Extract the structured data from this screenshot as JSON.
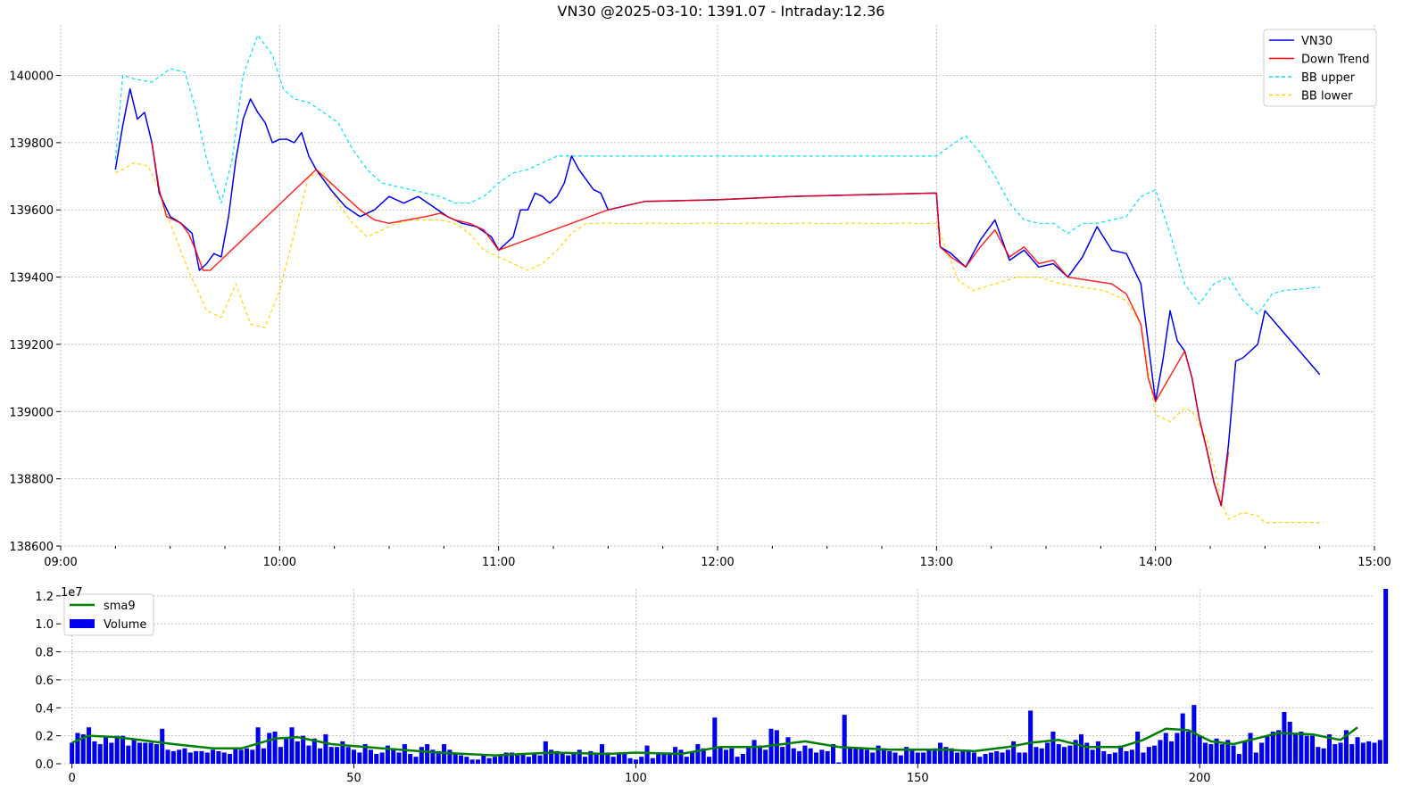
{
  "chart_data": [
    {
      "type": "line",
      "title": "VN30 @2025-03-10: 1391.07 - Intraday:12.36",
      "ylim": [
        138600,
        140150
      ],
      "xlim": [
        "09:00",
        "15:00"
      ],
      "y_ticks": [
        138600,
        138800,
        139000,
        139200,
        139400,
        139600,
        139800,
        140000
      ],
      "x_ticks": [
        "09:00",
        "10:00",
        "11:00",
        "12:00",
        "13:00",
        "14:00",
        "15:00"
      ],
      "grid": true,
      "legend_position": "top-right",
      "legend": [
        {
          "label": "VN30",
          "color": "#0000ee",
          "style": "solid"
        },
        {
          "label": "Down Trend",
          "color": "#ff0000",
          "style": "solid"
        },
        {
          "label": "BB upper",
          "color": "#00e5ee",
          "style": "dashed"
        },
        {
          "label": "BB lower",
          "color": "#ffd700",
          "style": "dashed"
        }
      ],
      "series": [
        {
          "name": "VN30",
          "color": "#0000ee",
          "x": [
            "09:15",
            "09:17",
            "09:19",
            "09:21",
            "09:23",
            "09:25",
            "09:27",
            "09:30",
            "09:33",
            "09:36",
            "09:38",
            "09:40",
            "09:42",
            "09:44",
            "09:46",
            "09:48",
            "09:50",
            "09:52",
            "09:54",
            "09:56",
            "09:58",
            "10:00",
            "10:02",
            "10:04",
            "10:06",
            "10:08",
            "10:10",
            "10:14",
            "10:18",
            "10:22",
            "10:26",
            "10:30",
            "10:34",
            "10:38",
            "10:42",
            "10:46",
            "10:50",
            "10:54",
            "10:58",
            "11:00",
            "11:04",
            "11:06",
            "11:08",
            "11:10",
            "11:12",
            "11:14",
            "11:16",
            "11:18",
            "11:20",
            "11:22",
            "11:24",
            "11:26",
            "11:28",
            "11:30",
            "11:40",
            "12:00",
            "12:20",
            "12:40",
            "13:00",
            "13:01",
            "13:04",
            "13:08",
            "13:12",
            "13:16",
            "13:20",
            "13:24",
            "13:28",
            "13:32",
            "13:36",
            "13:40",
            "13:44",
            "13:48",
            "13:52",
            "13:56",
            "14:00",
            "14:02",
            "14:04",
            "14:06",
            "14:08",
            "14:10",
            "14:12",
            "14:14",
            "14:16",
            "14:18",
            "14:20",
            "14:22",
            "14:24",
            "14:26",
            "14:28",
            "14:30",
            "14:45"
          ],
          "y": [
            139720,
            139850,
            139960,
            139870,
            139890,
            139800,
            139650,
            139580,
            139560,
            139530,
            139420,
            139440,
            139470,
            139460,
            139580,
            139750,
            139870,
            139930,
            139890,
            139860,
            139800,
            139810,
            139810,
            139800,
            139830,
            139760,
            139720,
            139660,
            139610,
            139580,
            139600,
            139640,
            139620,
            139640,
            139610,
            139580,
            139560,
            139550,
            139520,
            139480,
            139520,
            139600,
            139600,
            139650,
            139640,
            139620,
            139640,
            139680,
            139760,
            139720,
            139690,
            139660,
            139650,
            139600,
            139625,
            139630,
            139640,
            139645,
            139650,
            139490,
            139470,
            139430,
            139510,
            139570,
            139450,
            139480,
            139430,
            139440,
            139400,
            139460,
            139550,
            139480,
            139470,
            139380,
            139030,
            139150,
            139300,
            139210,
            139180,
            139100,
            138980,
            138890,
            138790,
            138720,
            138900,
            139150,
            139160,
            139180,
            139200,
            139300,
            139110
          ]
        },
        {
          "name": "Down Trend",
          "color": "#ff0000",
          "x": [
            "09:25",
            "09:27",
            "09:29",
            "09:31",
            "09:33",
            "09:35",
            "09:37",
            "09:39",
            "09:41",
            "10:10",
            "10:14",
            "10:18",
            "10:22",
            "10:26",
            "10:30",
            "10:40",
            "10:44",
            "10:48",
            "10:52",
            "10:56",
            "11:00",
            "11:30",
            "11:40",
            "12:00",
            "12:20",
            "12:40",
            "13:00",
            "13:01",
            "13:04",
            "13:08",
            "13:12",
            "13:16",
            "13:20",
            "13:24",
            "13:28",
            "13:32",
            "13:36",
            "13:48",
            "13:52",
            "13:56",
            "13:58",
            "14:00",
            "14:08",
            "14:10",
            "14:12",
            "14:14",
            "14:16",
            "14:18",
            "14:20"
          ],
          "y": [
            139800,
            139660,
            139580,
            139570,
            139560,
            139530,
            139480,
            139420,
            139420,
            139720,
            139680,
            139640,
            139600,
            139570,
            139560,
            139580,
            139590,
            139570,
            139560,
            139540,
            139480,
            139600,
            139625,
            139630,
            139640,
            139645,
            139650,
            139490,
            139460,
            139430,
            139490,
            139540,
            139460,
            139490,
            139440,
            139450,
            139400,
            139380,
            139350,
            139260,
            139100,
            139030,
            139180,
            139100,
            138980,
            138890,
            138790,
            138720,
            138880
          ]
        },
        {
          "name": "BB upper",
          "color": "#00e5ee",
          "x": [
            "09:15",
            "09:17",
            "09:20",
            "09:25",
            "09:30",
            "09:34",
            "09:37",
            "09:40",
            "09:44",
            "09:47",
            "09:50",
            "09:54",
            "09:58",
            "10:01",
            "10:04",
            "10:08",
            "10:12",
            "10:16",
            "10:20",
            "10:24",
            "10:28",
            "10:32",
            "10:36",
            "10:40",
            "10:44",
            "10:48",
            "10:52",
            "10:56",
            "11:00",
            "11:04",
            "11:08",
            "11:12",
            "11:16",
            "11:20",
            "11:24",
            "11:28",
            "11:30",
            "12:00",
            "12:30",
            "13:00",
            "13:05",
            "13:08",
            "13:12",
            "13:16",
            "13:20",
            "13:24",
            "13:28",
            "13:32",
            "13:36",
            "13:40",
            "13:44",
            "13:48",
            "13:52",
            "13:56",
            "14:00",
            "14:04",
            "14:08",
            "14:12",
            "14:16",
            "14:20",
            "14:24",
            "14:28",
            "14:32",
            "14:35",
            "14:45"
          ],
          "y": [
            139750,
            140000,
            139990,
            139980,
            140020,
            140010,
            139900,
            139750,
            139620,
            139750,
            140000,
            140120,
            140060,
            139960,
            139930,
            139920,
            139890,
            139860,
            139780,
            139720,
            139680,
            139670,
            139660,
            139650,
            139640,
            139620,
            139620,
            139640,
            139680,
            139710,
            139720,
            139740,
            139760,
            139760,
            139760,
            139760,
            139760,
            139760,
            139760,
            139760,
            139800,
            139820,
            139770,
            139700,
            139620,
            139570,
            139560,
            139560,
            139530,
            139560,
            139560,
            139570,
            139580,
            139640,
            139660,
            139530,
            139380,
            139320,
            139380,
            139400,
            139330,
            139290,
            139350,
            139360,
            139370
          ]
        },
        {
          "name": "BB lower",
          "color": "#ffd700",
          "x": [
            "09:15",
            "09:17",
            "09:20",
            "09:24",
            "09:27",
            "09:30",
            "09:35",
            "09:40",
            "09:44",
            "09:48",
            "09:52",
            "09:56",
            "10:00",
            "10:04",
            "10:08",
            "10:12",
            "10:16",
            "10:20",
            "10:24",
            "10:28",
            "10:32",
            "10:36",
            "10:40",
            "10:44",
            "10:48",
            "10:52",
            "10:56",
            "11:00",
            "11:04",
            "11:08",
            "11:12",
            "11:16",
            "11:20",
            "11:24",
            "11:28",
            "11:30",
            "12:00",
            "12:30",
            "13:00",
            "13:02",
            "13:06",
            "13:10",
            "13:16",
            "13:22",
            "13:28",
            "13:34",
            "13:40",
            "13:46",
            "13:52",
            "13:56",
            "14:00",
            "14:04",
            "14:08",
            "14:10",
            "14:14",
            "14:16",
            "14:18",
            "14:20",
            "14:24",
            "14:28",
            "14:30",
            "14:45"
          ],
          "y": [
            139710,
            139720,
            139740,
            139730,
            139660,
            139560,
            139420,
            139300,
            139280,
            139380,
            139260,
            139250,
            139360,
            139530,
            139700,
            139710,
            139620,
            139560,
            139520,
            139540,
            139560,
            139570,
            139570,
            139570,
            139560,
            139530,
            139480,
            139460,
            139440,
            139420,
            139440,
            139480,
            139530,
            139560,
            139560,
            139560,
            139560,
            139560,
            139560,
            139500,
            139390,
            139360,
            139380,
            139400,
            139400,
            139380,
            139370,
            139360,
            139330,
            139260,
            138990,
            138970,
            139010,
            139000,
            138920,
            138840,
            138730,
            138680,
            138700,
            138690,
            138670,
            138670
          ]
        }
      ]
    },
    {
      "type": "bar",
      "offset_label": "1e7",
      "ylim": [
        0,
        12500000
      ],
      "y_ticks": [
        0.0,
        0.2,
        0.4,
        0.6,
        0.8,
        1.0,
        1.2
      ],
      "x_ticks": [
        0,
        50,
        100,
        150,
        200
      ],
      "xlim": [
        -2,
        231
      ],
      "grid": true,
      "legend_position": "top-left",
      "legend": [
        {
          "label": "sma9",
          "color": "#008000",
          "kind": "line"
        },
        {
          "label": "Volume",
          "color": "#0000ee",
          "kind": "bar"
        }
      ],
      "series": [
        {
          "name": "Volume",
          "color": "#0000ee",
          "values": [
            1500000,
            2200000,
            2100000,
            2600000,
            1600000,
            1400000,
            1900000,
            1500000,
            2000000,
            2000000,
            1300000,
            1700000,
            1500000,
            1500000,
            1500000,
            1400000,
            2500000,
            1000000,
            900000,
            1000000,
            1100000,
            800000,
            900000,
            900000,
            800000,
            1000000,
            900000,
            800000,
            700000,
            1100000,
            1000000,
            1100000,
            1000000,
            2600000,
            1100000,
            2200000,
            2300000,
            1200000,
            1900000,
            2600000,
            1600000,
            2000000,
            1300000,
            1800000,
            1100000,
            2100000,
            1200000,
            1200000,
            1600000,
            1200000,
            1000000,
            800000,
            1400000,
            1000000,
            700000,
            800000,
            1300000,
            1000000,
            800000,
            1400000,
            700000,
            500000,
            1200000,
            1400000,
            1000000,
            900000,
            1400000,
            1000000,
            800000,
            600000,
            500000,
            300000,
            300000,
            700000,
            400000,
            500000,
            600000,
            800000,
            800000,
            600000,
            700000,
            500000,
            700000,
            600000,
            1600000,
            1000000,
            900000,
            700000,
            600000,
            800000,
            1000000,
            500000,
            900000,
            700000,
            1400000,
            800000,
            500000,
            700000,
            800000,
            400000,
            300000,
            500000,
            1300000,
            400000,
            700000,
            700000,
            800000,
            1200000,
            1000000,
            500000,
            800000,
            1400000,
            1100000,
            500000,
            3300000,
            1200000,
            1000000,
            1100000,
            500000,
            700000,
            1200000,
            1700000,
            1300000,
            1000000,
            2500000,
            2400000,
            1200000,
            1900000,
            1100000,
            900000,
            1300000,
            1100000,
            800000,
            1000000,
            900000,
            1400000,
            100000,
            3500000,
            1200000,
            1200000,
            1100000,
            1000000,
            800000,
            1300000,
            1100000,
            900000,
            800000,
            600000,
            1200000,
            1000000,
            800000,
            800000,
            1000000,
            1100000,
            1500000,
            1200000,
            1100000,
            800000,
            900000,
            1000000,
            800000,
            500000,
            700000,
            800000,
            900000,
            800000,
            1000000,
            1600000,
            800000,
            800000,
            3800000,
            1200000,
            1100000,
            1500000,
            2300000,
            1400000,
            1200000,
            1300000,
            1700000,
            2100000,
            1500000,
            1000000,
            1600000,
            900000,
            700000,
            800000,
            1300000,
            900000,
            1000000,
            2300000,
            800000,
            1200000,
            1300000,
            1700000,
            2200000,
            1600000,
            2200000,
            3600000,
            2300000,
            4200000,
            2000000,
            1500000,
            1400000,
            1800000,
            1400000,
            1700000,
            1300000,
            700000,
            1600000,
            2200000,
            800000,
            1500000,
            2000000,
            2300000,
            2400000,
            3700000,
            3000000,
            2100000,
            2300000,
            2000000,
            2000000,
            1200000,
            1100000,
            2100000,
            1400000,
            1500000,
            2400000,
            1400000,
            1900000,
            1500000,
            1600000,
            1500000,
            1700000,
            12500000
          ]
        },
        {
          "name": "sma9",
          "color": "#008000",
          "x": [
            0,
            3,
            8,
            12,
            18,
            25,
            30,
            36,
            40,
            46,
            55,
            65,
            75,
            85,
            95,
            100,
            108,
            115,
            122,
            130,
            136,
            145,
            150,
            155,
            160,
            166,
            170,
            175,
            180,
            186,
            190,
            194,
            198,
            202,
            206,
            210,
            214,
            220,
            225,
            228
          ],
          "values": [
            1500000,
            2000000,
            1900000,
            1700000,
            1400000,
            1100000,
            1100000,
            1800000,
            1900000,
            1400000,
            1100000,
            800000,
            600000,
            800000,
            700000,
            800000,
            700000,
            1200000,
            1200000,
            1600000,
            1200000,
            1000000,
            1000000,
            1000000,
            900000,
            1200000,
            1500000,
            1700000,
            1200000,
            1200000,
            1700000,
            2500000,
            2400000,
            1600000,
            1400000,
            1800000,
            2200000,
            2100000,
            1700000,
            2600000
          ]
        }
      ]
    }
  ]
}
